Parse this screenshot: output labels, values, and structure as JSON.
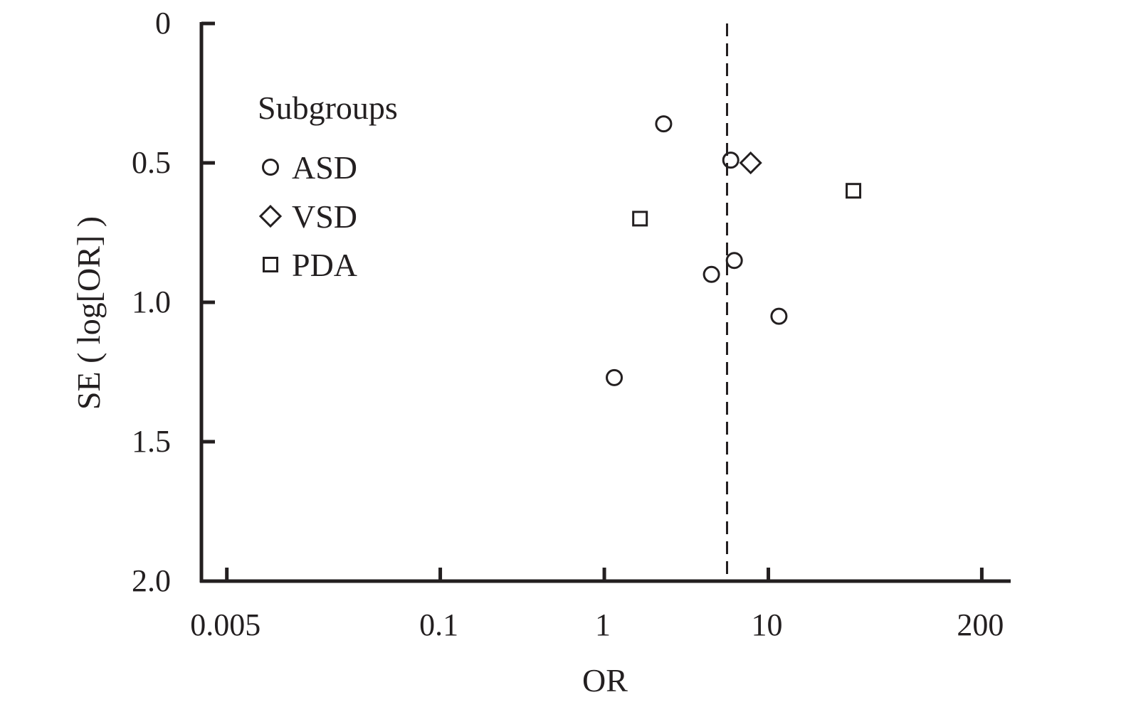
{
  "chart_data": {
    "type": "scatter",
    "chart_subtype": "funnel plot",
    "xlabel": "OR",
    "ylabel": "SE ( log[OR] )",
    "x_scale": "log",
    "xlim": [
      0.0035,
      300
    ],
    "ylim": [
      0,
      2.0
    ],
    "y_inverted": true,
    "x_ticks": [
      0.005,
      0.1,
      1,
      10,
      200
    ],
    "x_tick_labels": [
      "0.005",
      "0.1",
      "1",
      "10",
      "200"
    ],
    "y_ticks": [
      0,
      0.5,
      1.0,
      1.5,
      2.0
    ],
    "y_tick_labels": [
      "0",
      "0.5",
      "1.0",
      "1.5",
      "2.0"
    ],
    "reference_line": {
      "x": 5.6,
      "style": "dashed"
    },
    "grid": false,
    "legend": {
      "title": "Subgroups",
      "position": "top-left",
      "entries": [
        {
          "label": "ASD",
          "marker": "circle"
        },
        {
          "label": "VSD",
          "marker": "diamond"
        },
        {
          "label": "PDA",
          "marker": "square"
        }
      ]
    },
    "series": [
      {
        "name": "ASD",
        "marker": "circle",
        "points": [
          {
            "x": 2.3,
            "y": 0.36
          },
          {
            "x": 5.9,
            "y": 0.49
          },
          {
            "x": 6.2,
            "y": 0.85
          },
          {
            "x": 4.5,
            "y": 0.9
          },
          {
            "x": 11.6,
            "y": 1.05
          },
          {
            "x": 1.15,
            "y": 1.27
          }
        ]
      },
      {
        "name": "VSD",
        "marker": "diamond",
        "points": [
          {
            "x": 7.8,
            "y": 0.5
          }
        ]
      },
      {
        "name": "PDA",
        "marker": "square",
        "points": [
          {
            "x": 33,
            "y": 0.6
          },
          {
            "x": 1.65,
            "y": 0.7
          }
        ]
      }
    ],
    "colors": {
      "ink": "#231f20",
      "background": "#ffffff"
    }
  }
}
